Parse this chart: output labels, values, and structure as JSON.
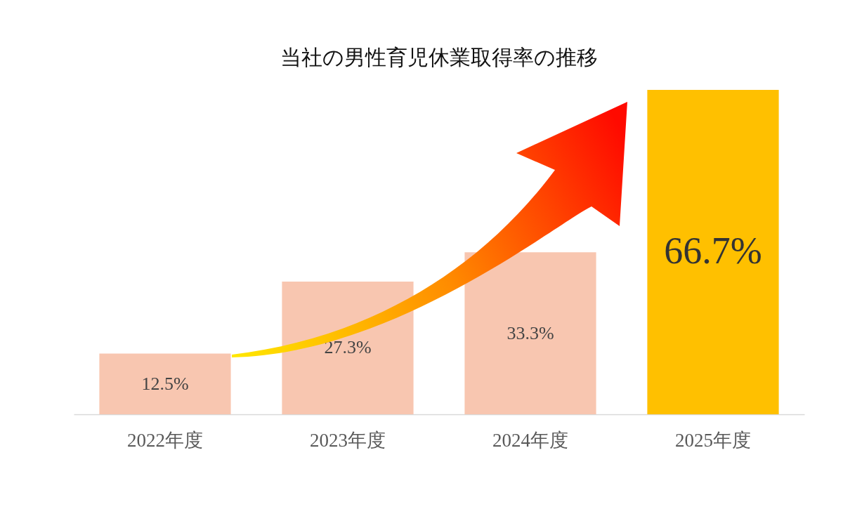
{
  "chart_data": {
    "type": "bar",
    "title": "当社の男性育児休業取得率の推移",
    "categories": [
      "2022年度",
      "2023年度",
      "2024年度",
      "2025年度"
    ],
    "values": [
      12.5,
      27.3,
      33.3,
      66.7
    ],
    "value_labels": [
      "12.5%",
      "27.3%",
      "33.3%",
      "66.7%"
    ],
    "colors": [
      "#f8c6b0",
      "#f8c6b0",
      "#f8c6b0",
      "#ffc000"
    ]
  }
}
